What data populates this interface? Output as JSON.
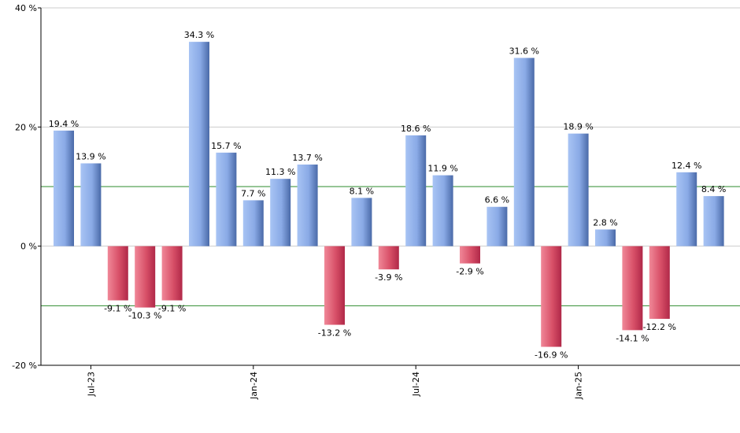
{
  "chart_data": {
    "type": "bar",
    "title": "",
    "xlabel": "",
    "ylabel": "",
    "ylim": [
      -20,
      40
    ],
    "y_unit": "%",
    "yticks": [
      {
        "value": -20,
        "label": "-20 %"
      },
      {
        "value": 0,
        "label": "0 %"
      },
      {
        "value": 20,
        "label": "20 %"
      },
      {
        "value": 40,
        "label": "40 %"
      }
    ],
    "reference_lines": [
      10,
      -10
    ],
    "grid": true,
    "x_tick_labels": [
      {
        "index": 1,
        "label": "Jul-23"
      },
      {
        "index": 7,
        "label": "Jan-24"
      },
      {
        "index": 13,
        "label": "Jul-24"
      },
      {
        "index": 19,
        "label": "Jan-25"
      }
    ],
    "values": [
      19.4,
      13.9,
      -9.1,
      -10.3,
      -9.1,
      34.3,
      15.7,
      7.7,
      11.3,
      13.7,
      -13.2,
      8.1,
      -3.9,
      18.6,
      11.9,
      -2.9,
      6.6,
      31.6,
      -16.9,
      18.9,
      2.8,
      -14.1,
      -12.2,
      12.4,
      8.4
    ],
    "labels": [
      "19.4 %",
      "13.9 %",
      "-9.1 %",
      "-10.3 %",
      "-9.1 %",
      "34.3 %",
      "15.7 %",
      "7.7 %",
      "11.3 %",
      "13.7 %",
      "-13.2 %",
      "8.1 %",
      "-3.9 %",
      "18.6 %",
      "11.9 %",
      "-2.9 %",
      "6.6 %",
      "31.6 %",
      "-16.9 %",
      "18.9 %",
      "2.8 %",
      "-14.1 %",
      "-12.2 %",
      "12.4 %",
      "8.4 %"
    ],
    "colors": {
      "positive_light": "#a8c4f4",
      "positive_dark": "#4a6aa8",
      "negative_light": "#f08898",
      "negative_dark": "#b02848",
      "reference_line": "#2e8b2e",
      "grid_line": "#cccccc",
      "axis": "#000000"
    }
  }
}
